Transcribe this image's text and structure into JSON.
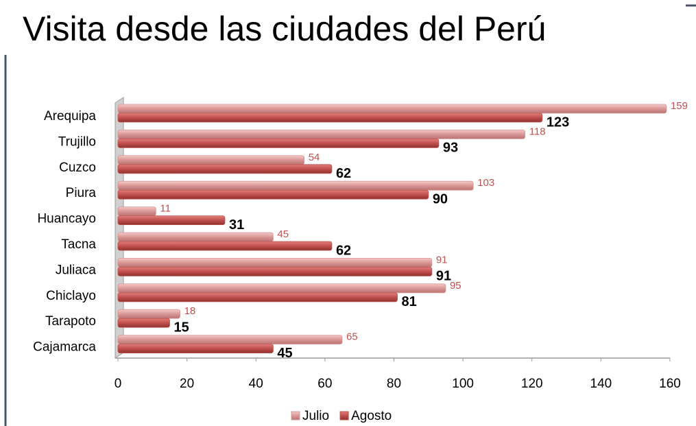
{
  "chart_data": {
    "type": "bar",
    "orientation": "horizontal",
    "title": "Visita desde las ciudades del Perú",
    "categories": [
      "Arequipa",
      "Trujillo",
      "Cuzco",
      "Piura",
      "Huancayo",
      "Tacna",
      "Juliaca",
      "Chiclayo",
      "Tarapoto",
      "Cajamarca"
    ],
    "series": [
      {
        "name": "Julio",
        "color": "#d99694",
        "values": [
          159,
          118,
          54,
          103,
          11,
          45,
          91,
          95,
          18,
          65
        ]
      },
      {
        "name": "Agosto",
        "color": "#c0504d",
        "values": [
          123,
          93,
          62,
          90,
          31,
          62,
          91,
          81,
          15,
          45
        ]
      }
    ],
    "xlim": [
      0,
      160
    ],
    "xticks": [
      0,
      20,
      40,
      60,
      80,
      100,
      120,
      140,
      160
    ],
    "legend": "bottom"
  }
}
